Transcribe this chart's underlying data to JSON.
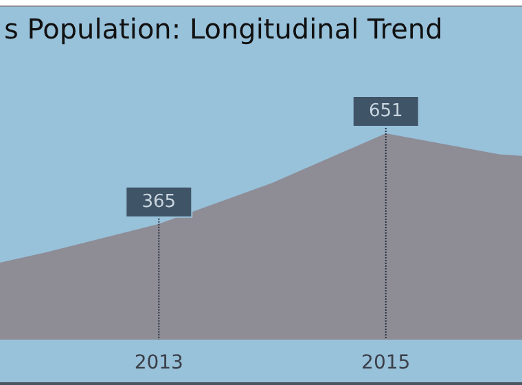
{
  "chart_data": {
    "type": "area",
    "title": "s Population: Longitudinal Trend",
    "x": [
      2011.6,
      2012,
      2013,
      2014,
      2015,
      2016,
      2016.2
    ],
    "series": [
      {
        "color": "#8e8c95",
        "values": [
          243,
          275,
          365,
          495,
          651,
          585,
          580
        ],
        "value_labels": [
          null,
          null,
          "365",
          null,
          "651",
          null,
          null
        ]
      }
    ],
    "xlim": [
      2011.6,
      2016.2
    ],
    "xticks": [
      2013,
      2015
    ],
    "grid": "x",
    "marker": "none"
  }
}
